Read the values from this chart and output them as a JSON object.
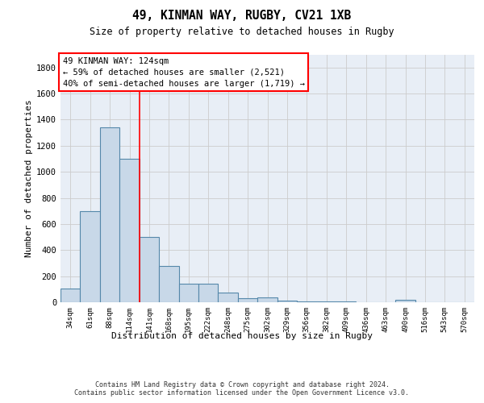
{
  "title1": "49, KINMAN WAY, RUGBY, CV21 1XB",
  "title2": "Size of property relative to detached houses in Rugby",
  "xlabel": "Distribution of detached houses by size in Rugby",
  "ylabel": "Number of detached properties",
  "categories": [
    "34sqm",
    "61sqm",
    "88sqm",
    "114sqm",
    "141sqm",
    "168sqm",
    "195sqm",
    "222sqm",
    "248sqm",
    "275sqm",
    "302sqm",
    "329sqm",
    "356sqm",
    "382sqm",
    "409sqm",
    "436sqm",
    "463sqm",
    "490sqm",
    "516sqm",
    "543sqm",
    "570sqm"
  ],
  "values": [
    105,
    700,
    1340,
    1100,
    500,
    275,
    140,
    140,
    75,
    30,
    35,
    15,
    5,
    5,
    5,
    0,
    0,
    20,
    0,
    0,
    0
  ],
  "bar_color": "#c8d8e8",
  "bar_edge_color": "#5588aa",
  "bar_linewidth": 0.8,
  "grid_color": "#cccccc",
  "background_color": "#e8eef6",
  "vline_x_index": 3.5,
  "vline_color": "red",
  "annotation_text": "49 KINMAN WAY: 124sqm\n← 59% of detached houses are smaller (2,521)\n40% of semi-detached houses are larger (1,719) →",
  "annotation_box_color": "white",
  "annotation_box_edge": "red",
  "ylim": [
    0,
    1900
  ],
  "yticks": [
    0,
    200,
    400,
    600,
    800,
    1000,
    1200,
    1400,
    1600,
    1800
  ],
  "footer": "Contains HM Land Registry data © Crown copyright and database right 2024.\nContains public sector information licensed under the Open Government Licence v3.0."
}
